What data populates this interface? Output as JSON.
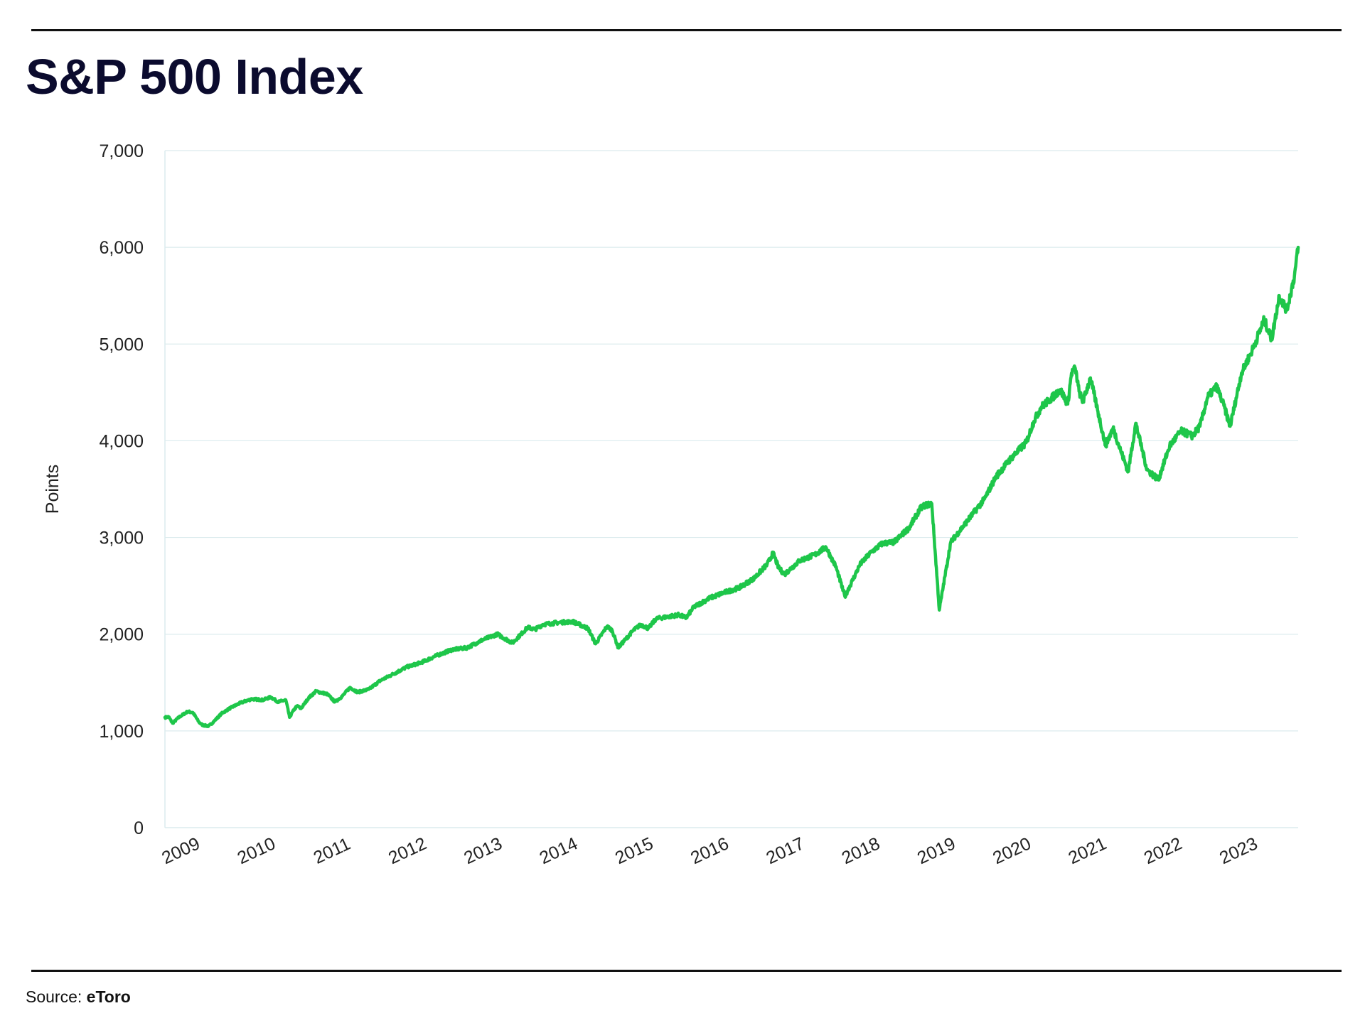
{
  "title": "S&P 500 Index",
  "source": {
    "label": "Source: ",
    "name": "eToro"
  },
  "colors": {
    "line": "#1ec64a",
    "grid": "#dcebee",
    "rule": "#111111",
    "title": "#0b0b2e"
  },
  "chart_data": {
    "type": "line",
    "title": "S&P 500 Index",
    "xlabel": "",
    "ylabel": "Points",
    "ylim": [
      0,
      7000
    ],
    "yticks": [
      0,
      1000,
      2000,
      3000,
      4000,
      5000,
      6000,
      7000
    ],
    "ytick_labels": [
      "0",
      "1,000",
      "2,000",
      "3,000",
      "4,000",
      "5,000",
      "6,000",
      "7,000"
    ],
    "xlim": [
      2009,
      2024
    ],
    "xticks": [
      2009,
      2010,
      2011,
      2012,
      2013,
      2014,
      2015,
      2016,
      2017,
      2018,
      2019,
      2020,
      2021,
      2022,
      2023
    ],
    "xtick_labels": [
      "2009",
      "2010",
      "2011",
      "2012",
      "2013",
      "2014",
      "2015",
      "2016",
      "2017",
      "2018",
      "2019",
      "2020",
      "2021",
      "2022",
      "2023"
    ],
    "grid": true,
    "legend": "none",
    "series": [
      {
        "x": [
          2009.0,
          2009.05,
          2009.1,
          2009.2,
          2009.3,
          2009.37,
          2009.45,
          2009.5,
          2009.58,
          2009.65,
          2009.75,
          2009.85,
          2010.0,
          2010.15,
          2010.3,
          2010.4,
          2010.5,
          2010.6,
          2010.65,
          2010.7,
          2010.75,
          2010.8,
          2010.9,
          2011.0,
          2011.15,
          2011.25,
          2011.35,
          2011.45,
          2011.55,
          2011.7,
          2011.85,
          2012.0,
          2012.2,
          2012.4,
          2012.6,
          2012.8,
          2013.0,
          2013.2,
          2013.4,
          2013.6,
          2013.8,
          2013.9,
          2014.0,
          2014.2,
          2014.4,
          2014.6,
          2014.7,
          2014.85,
          2014.92,
          2015.0,
          2015.2,
          2015.3,
          2015.4,
          2015.5,
          2015.65,
          2015.8,
          2015.9,
          2016.0,
          2016.2,
          2016.4,
          2016.6,
          2016.8,
          2016.97,
          2017.05,
          2017.12,
          2017.2,
          2017.4,
          2017.6,
          2017.75,
          2017.82,
          2017.88,
          2018.0,
          2018.2,
          2018.35,
          2018.5,
          2018.65,
          2018.85,
          2019.0,
          2019.05,
          2019.15,
          2019.25,
          2019.4,
          2019.55,
          2019.7,
          2019.85,
          2020.0,
          2020.2,
          2020.4,
          2020.5,
          2020.6,
          2020.75,
          2020.85,
          2020.95,
          2021.0,
          2021.05,
          2021.1,
          2021.15,
          2021.25,
          2021.35,
          2021.45,
          2021.55,
          2021.65,
          2021.75,
          2021.85,
          2022.0,
          2022.15,
          2022.3,
          2022.45,
          2022.6,
          2022.7,
          2022.8,
          2022.92,
          2023.0,
          2023.1,
          2023.25,
          2023.4,
          2023.55,
          2023.65,
          2023.75,
          2023.85,
          2023.95,
          2024.0
        ],
        "y": [
          1140,
          1145,
          1080,
          1150,
          1200,
          1190,
          1090,
          1060,
          1050,
          1100,
          1180,
          1230,
          1290,
          1330,
          1320,
          1350,
          1300,
          1320,
          1140,
          1210,
          1260,
          1230,
          1340,
          1410,
          1380,
          1300,
          1360,
          1450,
          1400,
          1430,
          1520,
          1580,
          1660,
          1710,
          1780,
          1840,
          1860,
          1940,
          2000,
          1910,
          2070,
          2050,
          2100,
          2120,
          2130,
          2060,
          1900,
          2080,
          2040,
          1860,
          2040,
          2100,
          2060,
          2160,
          2180,
          2200,
          2170,
          2280,
          2370,
          2430,
          2480,
          2580,
          2720,
          2840,
          2690,
          2620,
          2760,
          2820,
          2900,
          2790,
          2700,
          2390,
          2720,
          2850,
          2940,
          2950,
          3100,
          3300,
          3330,
          3350,
          2250,
          2950,
          3100,
          3250,
          3400,
          3630,
          3820,
          3980,
          4200,
          4350,
          4450,
          4530,
          4380,
          4700,
          4750,
          4510,
          4400,
          4650,
          4300,
          3950,
          4130,
          3900,
          3680,
          4180,
          3700,
          3600,
          3950,
          4100,
          4050,
          4150,
          4450,
          4560,
          4400,
          4150,
          4700,
          4950,
          5250,
          5050,
          5500,
          5350,
          5700,
          6000
        ]
      }
    ]
  }
}
